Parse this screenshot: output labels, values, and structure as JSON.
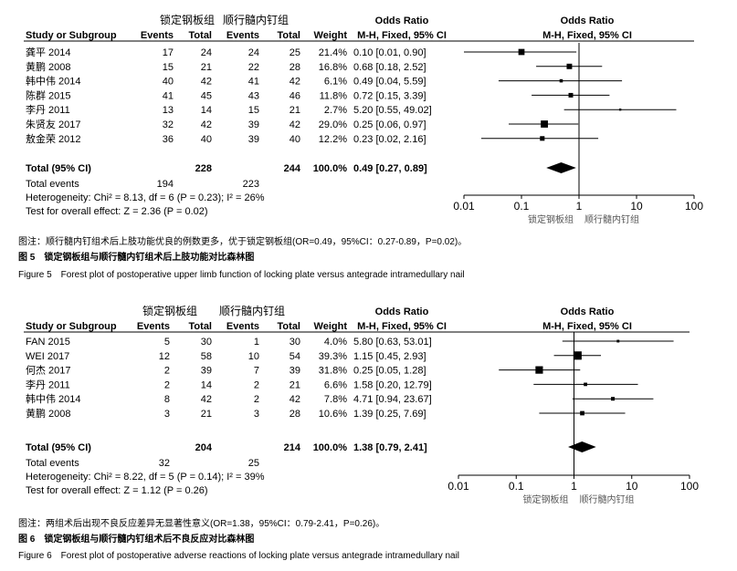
{
  "caption_fig5_cn": "图注：顺行髓内钉组术后上肢功能优良的例数更多，优于锁定钢板组(OR=0.49，95%CI：0.27-0.89，P=0.02)。",
  "title_fig5_cn": "图 5　锁定钢板组与顺行髓内钉组术后上肢功能对比森林图",
  "title_fig5_en": "Figure 5　Forest plot of postoperative upper limb function of locking plate versus antegrade intramedullary nail",
  "caption_fig6_cn": "图注：两组术后出现不良反应差异无显著性意义(OR=1.38，95%CI：0.79-2.41，P=0.26)。",
  "title_fig6_cn": "图 6　锁定钢板组与顺行髓内钉组术后不良反应对比森林图",
  "title_fig6_en": "Figure 6　Forest plot of postoperative adverse reactions of locking plate versus antegrade intramedullary nail",
  "chart_data": [
    {
      "type": "forest",
      "group1": "锁定钢板组",
      "group2": "顺行髓内钉组",
      "headers": {
        "study": "Study or Subgroup",
        "events": "Events",
        "total": "Total",
        "weight": "Weight",
        "or_title": "Odds Ratio",
        "or_method": "M-H, Fixed, 95% CI"
      },
      "scale": "log",
      "ticks": [
        "0.01",
        "0.1",
        "1",
        "10",
        "100"
      ],
      "tick_values": [
        0.01,
        0.1,
        1,
        10,
        100
      ],
      "axis_left": "锁定钢板组",
      "axis_right": "顺行髓内钉组",
      "studies": [
        {
          "name": "龚平  2014",
          "e1": "17",
          "n1": "24",
          "e2": "24",
          "n2": "25",
          "weight": "21.4%",
          "ci": "0.10 [0.01, 0.90]",
          "or": 0.1,
          "lo": 0.01,
          "hi": 0.9,
          "w": 21.4
        },
        {
          "name": "黄鹏  2008",
          "e1": "15",
          "n1": "21",
          "e2": "22",
          "n2": "28",
          "weight": "16.8%",
          "ci": "0.68 [0.18, 2.52]",
          "or": 0.68,
          "lo": 0.18,
          "hi": 2.52,
          "w": 16.8
        },
        {
          "name": "韩中伟 2014",
          "e1": "40",
          "n1": "42",
          "e2": "41",
          "n2": "42",
          "weight": "6.1%",
          "ci": "0.49 [0.04, 5.59]",
          "or": 0.49,
          "lo": 0.04,
          "hi": 5.59,
          "w": 6.1
        },
        {
          "name": "陈群  2015",
          "e1": "41",
          "n1": "45",
          "e2": "43",
          "n2": "46",
          "weight": "11.8%",
          "ci": "0.72 [0.15, 3.39]",
          "or": 0.72,
          "lo": 0.15,
          "hi": 3.39,
          "w": 11.8
        },
        {
          "name": "李丹  2011",
          "e1": "13",
          "n1": "14",
          "e2": "15",
          "n2": "21",
          "weight": "2.7%",
          "ci": "5.20 [0.55, 49.02]",
          "or": 5.2,
          "lo": 0.55,
          "hi": 49.02,
          "w": 2.7
        },
        {
          "name": "朱贤友 2017",
          "e1": "32",
          "n1": "42",
          "e2": "39",
          "n2": "42",
          "weight": "29.0%",
          "ci": "0.25 [0.06, 0.97]",
          "or": 0.25,
          "lo": 0.06,
          "hi": 0.97,
          "w": 29.0
        },
        {
          "name": "敖金荣 2012",
          "e1": "36",
          "n1": "40",
          "e2": "39",
          "n2": "40",
          "weight": "12.2%",
          "ci": "0.23 [0.02, 2.16]",
          "or": 0.23,
          "lo": 0.02,
          "hi": 2.16,
          "w": 12.2
        }
      ],
      "total": {
        "label": "Total (95% CI)",
        "n1": "228",
        "n2": "244",
        "weight": "100.0%",
        "ci": "0.49 [0.27, 0.89]",
        "or": 0.49,
        "lo": 0.27,
        "hi": 0.89
      },
      "total_events": {
        "label": "Total events",
        "e1": "194",
        "e2": "223"
      },
      "heterogeneity": "Heterogeneity: Chi² = 8.13, df = 6 (P = 0.23); I² = 26%",
      "overall": "Test for overall effect: Z = 2.36 (P = 0.02)"
    },
    {
      "type": "forest",
      "group1": "锁定钢板组",
      "group2": "顺行髓内钉组",
      "headers": {
        "study": "Study or Subgroup",
        "events": "Events",
        "total": "Total",
        "weight": "Weight",
        "or_title": "Odds Ratio",
        "or_method": "M-H, Fixed, 95% CI"
      },
      "scale": "log",
      "ticks": [
        "0.01",
        "0.1",
        "1",
        "10",
        "100"
      ],
      "tick_values": [
        0.01,
        0.1,
        1,
        10,
        100
      ],
      "axis_left": "锁定钢板组",
      "axis_right": "顺行髓内钉组",
      "studies": [
        {
          "name": "FAN 2015",
          "e1": "5",
          "n1": "30",
          "e2": "1",
          "n2": "30",
          "weight": "4.0%",
          "ci": "5.80 [0.63, 53.01]",
          "or": 5.8,
          "lo": 0.63,
          "hi": 53.01,
          "w": 4.0
        },
        {
          "name": "WEI  2017",
          "e1": "12",
          "n1": "58",
          "e2": "10",
          "n2": "54",
          "weight": "39.3%",
          "ci": "1.15 [0.45, 2.93]",
          "or": 1.15,
          "lo": 0.45,
          "hi": 2.93,
          "w": 39.3
        },
        {
          "name": "何杰  2017",
          "e1": "2",
          "n1": "39",
          "e2": "7",
          "n2": "39",
          "weight": "31.8%",
          "ci": "0.25 [0.05, 1.28]",
          "or": 0.25,
          "lo": 0.05,
          "hi": 1.28,
          "w": 31.8
        },
        {
          "name": "李丹  2011",
          "e1": "2",
          "n1": "14",
          "e2": "2",
          "n2": "21",
          "weight": "6.6%",
          "ci": "1.58 [0.20, 12.79]",
          "or": 1.58,
          "lo": 0.2,
          "hi": 12.79,
          "w": 6.6
        },
        {
          "name": "韩中伟 2014",
          "e1": "8",
          "n1": "42",
          "e2": "2",
          "n2": "42",
          "weight": "7.8%",
          "ci": "4.71 [0.94, 23.67]",
          "or": 4.71,
          "lo": 0.94,
          "hi": 23.67,
          "w": 7.8
        },
        {
          "name": "黄鹏  2008",
          "e1": "3",
          "n1": "21",
          "e2": "3",
          "n2": "28",
          "weight": "10.6%",
          "ci": "1.39 [0.25, 7.69]",
          "or": 1.39,
          "lo": 0.25,
          "hi": 7.69,
          "w": 10.6
        }
      ],
      "total": {
        "label": "Total (95% CI)",
        "n1": "204",
        "n2": "214",
        "weight": "100.0%",
        "ci": "1.38 [0.79, 2.41]",
        "or": 1.38,
        "lo": 0.79,
        "hi": 2.41
      },
      "total_events": {
        "label": "Total events",
        "e1": "32",
        "e2": "25"
      },
      "heterogeneity": "Heterogeneity: Chi² = 8.22, df = 5 (P = 0.14); I² = 39%",
      "overall": "Test for overall effect: Z = 1.12 (P = 0.26)"
    }
  ]
}
